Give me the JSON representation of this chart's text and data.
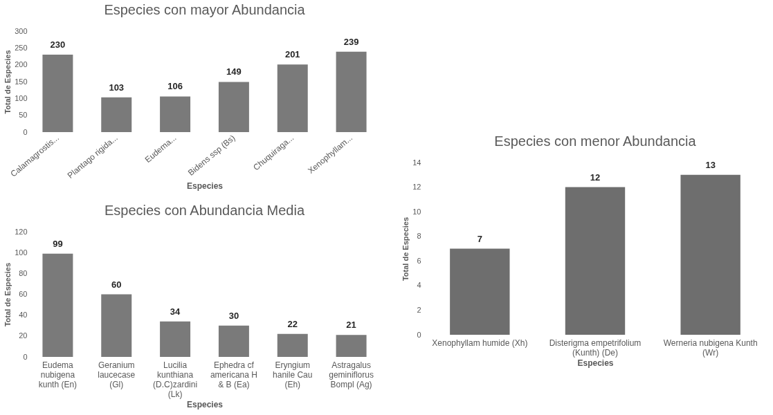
{
  "chart_data": [
    {
      "type": "bar",
      "title": "Especies con mayor Abundancia",
      "xlabel": "Especies",
      "ylabel": "Total de Especies",
      "categories": [
        "Calamagrostis...",
        "Plantago rigida...",
        "Eudema...",
        "Bidens ssp (Bs)",
        "Chuquiraga...",
        "Xenophyllam..."
      ],
      "values": [
        230,
        103,
        106,
        149,
        201,
        239
      ],
      "color": "#7a7a7a",
      "ylim": [
        0,
        300
      ],
      "yticks": [
        0,
        50,
        100,
        150,
        200,
        250,
        300
      ],
      "data_labels": true
    },
    {
      "type": "bar",
      "title": "Especies con Abundancia Media",
      "xlabel": "Especies",
      "ylabel": "Total de Especies",
      "categories": [
        "Eudema\nnubigena\nkunth  (En)",
        "Geranium\nlaucecase\n(Gl)",
        "Lucilia\nkunthiana\n(D.C)zardini\n(Lk)",
        "Ephedra cf\namericana H\n& B (Ea)",
        "Eryngium\nhanile Cau\n(Eh)",
        "Astragalus\ngeminiflorus\nBompl (Ag)"
      ],
      "values": [
        99,
        60,
        34,
        30,
        22,
        21
      ],
      "color": "#7a7a7a",
      "ylim": [
        0,
        120
      ],
      "yticks": [
        0,
        20,
        40,
        60,
        80,
        100,
        120
      ],
      "data_labels": true
    },
    {
      "type": "bar",
      "title": "Especies con menor  Abundancia",
      "xlabel": "Especies",
      "ylabel": "Total de Especies",
      "categories": [
        "Xenophyllam humide (Xh)",
        "Disterigma empetrifolium\n(Kunth)  (De)",
        "Werneria nubigena Kunth\n(Wr)"
      ],
      "values": [
        7,
        12,
        13
      ],
      "color": "#6e6e6e",
      "ylim": [
        0,
        14
      ],
      "yticks": [
        0,
        2,
        4,
        6,
        8,
        10,
        12,
        14
      ],
      "data_labels": true
    }
  ]
}
